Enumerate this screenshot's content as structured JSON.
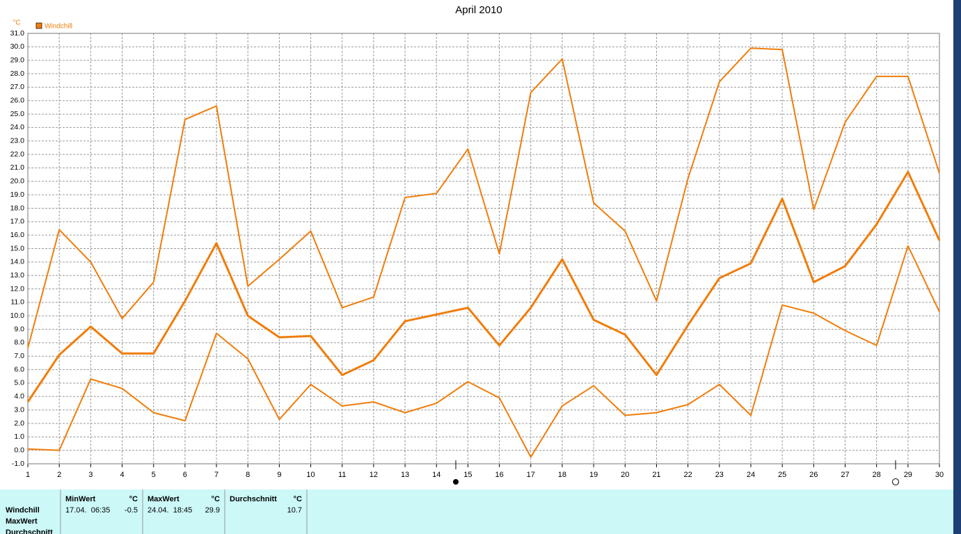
{
  "chart_data": {
    "type": "line",
    "title": "April 2010",
    "y_unit": "°C",
    "x": [
      1,
      2,
      3,
      4,
      5,
      6,
      7,
      8,
      9,
      10,
      11,
      12,
      13,
      14,
      15,
      16,
      17,
      18,
      19,
      20,
      21,
      22,
      23,
      24,
      25,
      26,
      27,
      28,
      29,
      30
    ],
    "xlim": [
      1,
      30
    ],
    "xticks": [
      1,
      2,
      3,
      4,
      5,
      6,
      7,
      8,
      9,
      10,
      11,
      12,
      13,
      14,
      15,
      16,
      17,
      18,
      19,
      20,
      21,
      22,
      23,
      24,
      25,
      26,
      27,
      28,
      29,
      30
    ],
    "ylim": [
      -1,
      31
    ],
    "yticks": [
      {
        "value": -1,
        "label": "-1.0"
      },
      {
        "value": 0,
        "label": "0.0"
      },
      {
        "value": 1,
        "label": "1.0"
      },
      {
        "value": 2,
        "label": "2.0"
      },
      {
        "value": 3,
        "label": "3.0"
      },
      {
        "value": 4,
        "label": "4.0"
      },
      {
        "value": 5,
        "label": "5.0"
      },
      {
        "value": 6,
        "label": "6.0"
      },
      {
        "value": 7,
        "label": "7.0"
      },
      {
        "value": 8,
        "label": "8.0"
      },
      {
        "value": 9,
        "label": "9.0"
      },
      {
        "value": 10,
        "label": "10.0"
      },
      {
        "value": 11,
        "label": "11.0"
      },
      {
        "value": 12,
        "label": "12.0"
      },
      {
        "value": 13,
        "label": "13.0"
      },
      {
        "value": 14,
        "label": "14.0"
      },
      {
        "value": 15,
        "label": "15.0"
      },
      {
        "value": 16,
        "label": "16.0"
      },
      {
        "value": 17,
        "label": "17.0"
      },
      {
        "value": 18,
        "label": "18.0"
      },
      {
        "value": 19,
        "label": "19.0"
      },
      {
        "value": 20,
        "label": "20.0"
      },
      {
        "value": 21,
        "label": "21.0"
      },
      {
        "value": 22,
        "label": "22.0"
      },
      {
        "value": 23,
        "label": "23.0"
      },
      {
        "value": 24,
        "label": "24.0"
      },
      {
        "value": 25,
        "label": "25.0"
      },
      {
        "value": 26,
        "label": "26.0"
      },
      {
        "value": 27,
        "label": "27.0"
      },
      {
        "value": 28,
        "label": "28.0"
      },
      {
        "value": 29,
        "label": "29.0"
      },
      {
        "value": 30,
        "label": "30.0"
      },
      {
        "value": 31,
        "label": "31.0"
      }
    ],
    "grid": true,
    "series": [
      {
        "name": "Windchill",
        "color": "#f07d0a",
        "values": [
          3.6,
          7.1,
          9.2,
          7.2,
          7.2,
          11.1,
          15.4,
          10.0,
          8.4,
          8.5,
          5.6,
          6.7,
          9.6,
          10.1,
          10.6,
          7.8,
          10.6,
          14.2,
          9.7,
          8.6,
          5.6,
          9.3,
          12.8,
          13.9,
          18.7,
          12.5,
          13.7,
          16.8,
          20.7,
          15.6
        ]
      },
      {
        "color": "#f07d0a",
        "values": [
          7.6,
          16.4,
          14.0,
          9.8,
          12.5,
          24.6,
          25.6,
          12.2,
          14.2,
          16.3,
          10.6,
          11.4,
          18.8,
          19.1,
          22.4,
          14.6,
          26.6,
          29.1,
          18.4,
          16.3,
          11.1,
          20.2,
          27.4,
          29.9,
          29.8,
          17.9,
          24.4,
          27.8,
          27.8,
          20.6
        ]
      },
      {
        "color": "#f07d0a",
        "values": [
          0.1,
          0.0,
          5.3,
          4.6,
          2.8,
          2.2,
          8.7,
          6.8,
          2.3,
          4.9,
          3.3,
          3.6,
          2.8,
          3.5,
          5.1,
          3.9,
          -0.5,
          3.3,
          4.8,
          2.6,
          2.8,
          3.4,
          4.9,
          2.6,
          10.8,
          10.2,
          8.9,
          7.8,
          15.2,
          10.3
        ]
      }
    ]
  },
  "stats_panel": {
    "row_labels": [
      "Windchill",
      "MaxWert",
      "Durchschnitt"
    ],
    "columns": [
      {
        "header": "MinWert",
        "unit": "°C",
        "time": "17.04.  06:35",
        "value": "-0.5"
      },
      {
        "header": "MaxWert",
        "unit": "°C",
        "time": "24.04.  18:45",
        "value": "29.9"
      },
      {
        "header": "Durchschnitt",
        "unit": "°C",
        "value": "10.7"
      }
    ]
  }
}
